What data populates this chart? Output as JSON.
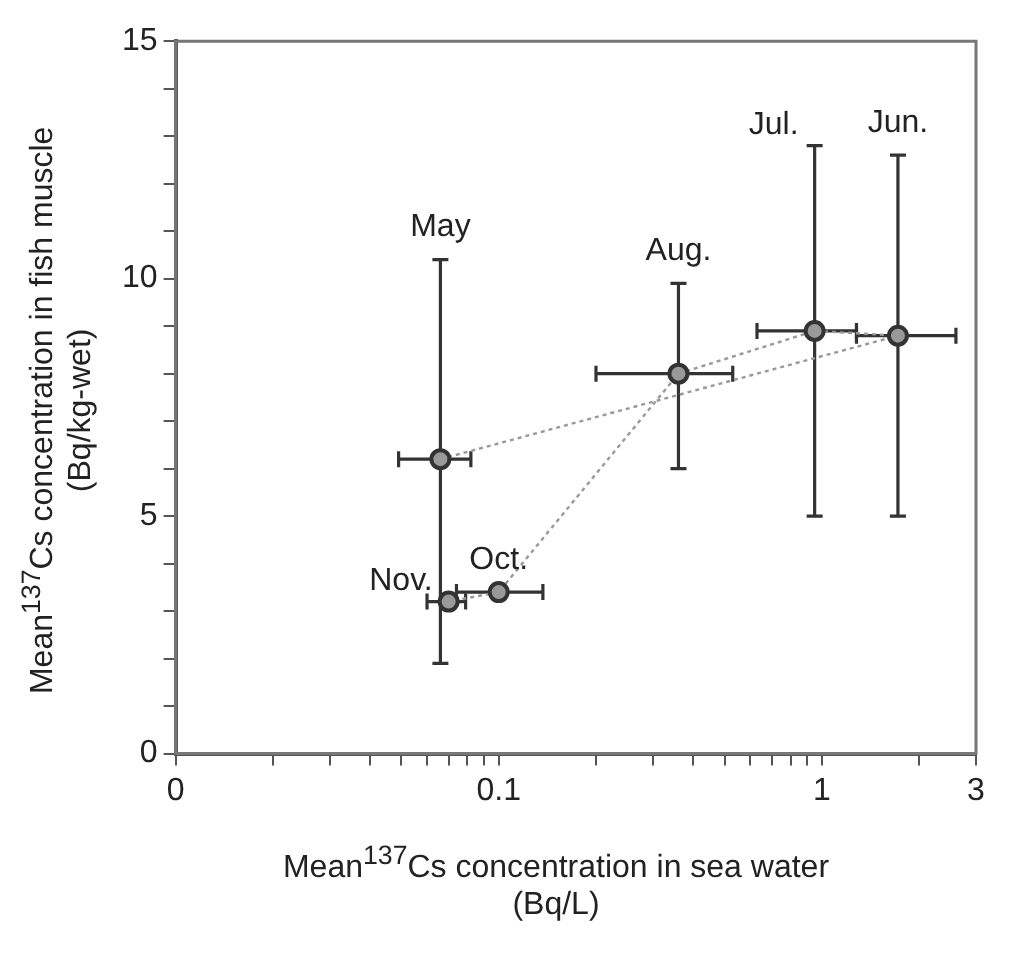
{
  "chart_data": {
    "type": "scatter",
    "xlabel": "Mean$^{137}$Cs concentration in sea water\n(Bq/L)",
    "ylabel": "Mean$^{137}$Cs concentration in fish muscle\n(Bq/kg-wet)",
    "log": "x",
    "xlim": [
      0.01,
      3
    ],
    "ylim": [
      0,
      15
    ],
    "xticks": [
      {
        "value": 0.01,
        "label": "0"
      },
      {
        "value": 0.02,
        "label": null
      },
      {
        "value": 0.03,
        "label": null
      },
      {
        "value": 0.04,
        "label": null
      },
      {
        "value": 0.05,
        "label": null
      },
      {
        "value": 0.06,
        "label": null
      },
      {
        "value": 0.07,
        "label": null
      },
      {
        "value": 0.08,
        "label": null
      },
      {
        "value": 0.09,
        "label": null
      },
      0.1,
      {
        "value": 0.2,
        "label": null
      },
      {
        "value": 0.3,
        "label": null
      },
      {
        "value": 0.4,
        "label": null
      },
      {
        "value": 0.5,
        "label": null
      },
      {
        "value": 0.6,
        "label": null
      },
      {
        "value": 0.7,
        "label": null
      },
      {
        "value": 0.8,
        "label": null
      },
      {
        "value": 0.9,
        "label": null
      },
      1,
      {
        "value": 2,
        "label": null
      },
      3
    ],
    "yticks": [
      0,
      {
        "value": 1,
        "label": null
      },
      {
        "value": 2,
        "label": null
      },
      {
        "value": 3,
        "label": null
      },
      {
        "value": 4,
        "label": null
      },
      5,
      {
        "value": 6,
        "label": null
      },
      {
        "value": 7,
        "label": null
      },
      {
        "value": 8,
        "label": null
      },
      {
        "value": 9,
        "label": null
      },
      10,
      {
        "value": 11,
        "label": null
      },
      {
        "value": 12,
        "label": null
      },
      {
        "value": 13,
        "label": null
      },
      {
        "value": 14,
        "label": null
      },
      15
    ],
    "grid": false,
    "legend": false,
    "marker": "circle",
    "line_style": "dotted",
    "series": [
      {
        "color": "#999999",
        "x": [
          0.066,
          1.72,
          0.95,
          0.36,
          0.1,
          0.07
        ],
        "values": [
          6.2,
          8.8,
          8.9,
          8.0,
          3.4,
          3.2
        ],
        "errors": [
          [
            1.9,
            10.4
          ],
          [
            5.0,
            12.6
          ],
          [
            5.0,
            12.8
          ],
          [
            6.0,
            9.9
          ],
          null,
          null
        ],
        "xerrors": [
          [
            0.049,
            0.082
          ],
          [
            1.28,
            2.6
          ],
          [
            0.63,
            1.28
          ],
          [
            0.2,
            0.53
          ],
          [
            0.074,
            0.137
          ],
          [
            0.06,
            0.079
          ]
        ]
      }
    ],
    "annotations": [
      {
        "text": "May",
        "x": 0.066,
        "y": 10.4
      },
      {
        "text": "Jun.",
        "x": 1.72,
        "y": 12.6
      },
      {
        "text": "Jul.",
        "x": 0.95,
        "y": 12.8
      },
      {
        "text": "Aug.",
        "x": 0.36,
        "y": 9.9
      },
      {
        "text": "Oct.",
        "x": 0.1,
        "y": 3.4
      },
      {
        "text": "Nov.",
        "x": 0.07,
        "y": 3.2
      }
    ]
  }
}
